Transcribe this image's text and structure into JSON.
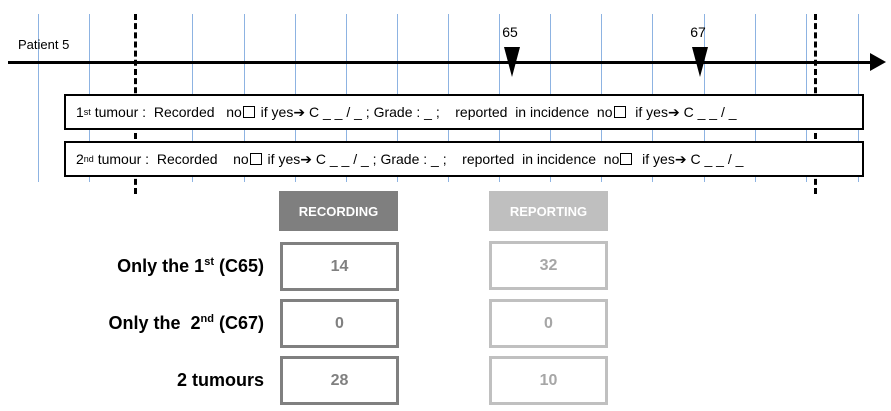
{
  "timeline": {
    "patient_label": "Patient 5",
    "markers": [
      {
        "code": "65"
      },
      {
        "code": "67"
      }
    ]
  },
  "tumours": [
    {
      "ord_num": "1",
      "ord_sup": "st",
      "lead": " tumour :  Recorded   no",
      "seg1": " if yes",
      "seg2": " C _ _ / _ ; Grade : _ ;    reported  in incidence  no",
      "seg3": "  if yes",
      "seg4": " C _ _ / _"
    },
    {
      "ord_num": "2",
      "ord_sup": "nd",
      "lead": " tumour :  Recorded    no",
      "seg1": " if yes",
      "seg2": " C _ _ / _ ; Grade : _ ;    reported  in incidence  no",
      "seg3": "  if yes",
      "seg4": " C _ _ / _"
    }
  ],
  "arrow_glyph": "➔",
  "table": {
    "headers": {
      "recording": "RECORDING",
      "reporting": "REPORTING"
    },
    "rows": [
      {
        "label_pre": "Only the 1",
        "label_sup": "st",
        "label_post": " (C65)",
        "recording": "14",
        "reporting": "32"
      },
      {
        "label_pre": "Only the  2",
        "label_sup": "nd",
        "label_post": " (C67)",
        "recording": "0",
        "reporting": "0"
      },
      {
        "label_pre": "2 tumours",
        "label_sup": "",
        "label_post": "",
        "recording": "28",
        "reporting": "10"
      }
    ]
  },
  "colors": {
    "grid": "#8db3e2",
    "recording": "#7f7f7f",
    "reporting": "#bfbfbf"
  }
}
